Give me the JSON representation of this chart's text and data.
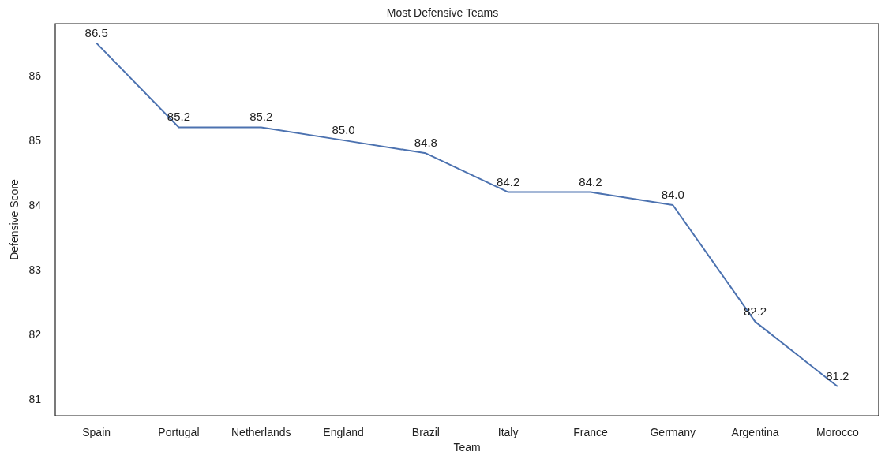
{
  "chart_data": {
    "type": "line",
    "title": "Most Defensive Teams",
    "xlabel": "Team",
    "ylabel": "Defensive Score",
    "categories": [
      "Spain",
      "Portugal",
      "Netherlands",
      "England",
      "Brazil",
      "Italy",
      "France",
      "Germany",
      "Argentina",
      "Morocco"
    ],
    "series": [
      {
        "color": "#4c72b0",
        "values": [
          86.5,
          85.2,
          85.2,
          85.0,
          84.8,
          84.2,
          84.2,
          84.0,
          82.2,
          81.2
        ],
        "value_labels": [
          "86.5",
          "85.2",
          "85.2",
          "85.0",
          "84.8",
          "84.2",
          "84.2",
          "84.0",
          "82.2",
          "81.2"
        ]
      }
    ],
    "ylim": [
      80.75,
      86.8
    ],
    "yticks": [
      81,
      82,
      83,
      84,
      85,
      86
    ],
    "grid": false,
    "marker": "none",
    "line_style": "solid"
  }
}
